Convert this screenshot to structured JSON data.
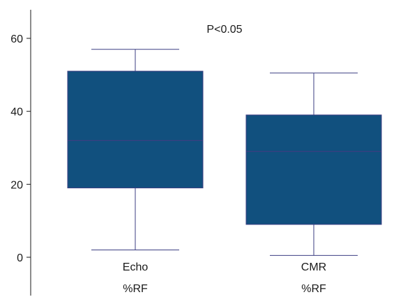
{
  "chart_data": {
    "type": "box",
    "title": "",
    "xlabel": "",
    "ylabel": "",
    "annotation": "P<0.05",
    "y_ticks": [
      0,
      20,
      40,
      60
    ],
    "ylim": [
      -8,
      68
    ],
    "box_color": "#11507E",
    "line_color": "#3B3E82",
    "categories": [
      "Echo",
      "CMR"
    ],
    "sublabels": [
      "%RF",
      "%RF"
    ],
    "boxes": [
      {
        "category": "Echo",
        "min": 2,
        "q1": 19,
        "median": 32,
        "q3": 51,
        "max": 57
      },
      {
        "category": "CMR",
        "min": 0.5,
        "q1": 9,
        "median": 29,
        "q3": 39,
        "max": 50.5
      }
    ]
  }
}
